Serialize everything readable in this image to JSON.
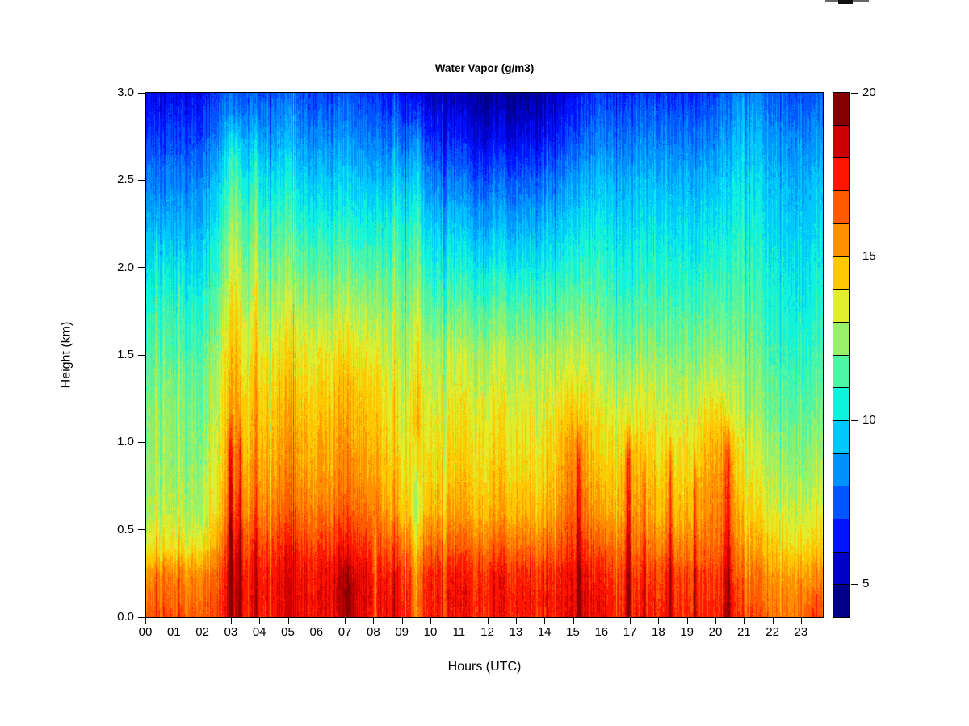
{
  "chart_data": {
    "type": "heatmap",
    "title": "Water Vapor (g/m3)",
    "xlabel": "Hours (UTC)",
    "ylabel": "Height (km)",
    "x_tick_labels": [
      "00",
      "01",
      "02",
      "03",
      "04",
      "05",
      "06",
      "07",
      "08",
      "09",
      "10",
      "11",
      "12",
      "13",
      "14",
      "15",
      "16",
      "17",
      "18",
      "19",
      "20",
      "21",
      "22",
      "23"
    ],
    "y_tick_labels_top_to_bottom": [
      "3.0",
      "2.5",
      "2.0",
      "1.5",
      "1.0",
      "0.5",
      "0.0"
    ],
    "x_range_hours": [
      0,
      23.77
    ],
    "y_range_km": [
      0,
      3
    ],
    "grid_on": false,
    "legend_position": "right-colorbar",
    "colorbar": {
      "min": 4,
      "max": 20,
      "step": 1,
      "tick_values": [
        20,
        15,
        10,
        5
      ],
      "tick_labels": [
        "20",
        "15",
        "10",
        "5"
      ],
      "colors_low_to_high": [
        "#00008b",
        "#0000c8",
        "#0013ff",
        "#0055ff",
        "#0091ff",
        "#00c8ff",
        "#0ff2dd",
        "#4ef5a5",
        "#97f16a",
        "#dfee2f",
        "#ffc800",
        "#ff9000",
        "#ff5a00",
        "#ff1500",
        "#cb0000",
        "#850000"
      ]
    },
    "grid": {
      "hours": [
        0,
        1,
        2,
        3,
        4,
        5,
        6,
        7,
        8,
        9,
        10,
        11,
        12,
        13,
        14,
        15,
        16,
        17,
        18,
        19,
        20,
        21,
        22,
        23,
        24
      ],
      "heights_km": [
        0.0,
        0.1,
        0.25,
        0.4,
        0.6,
        0.8,
        1.0,
        1.25,
        1.5,
        1.75,
        2.0,
        2.25,
        2.5,
        2.75,
        3.0
      ],
      "values_g_m3": [
        [
          16.6,
          16.6,
          16.6,
          17.4,
          17.6,
          17.7,
          17.8,
          17.8,
          17.7,
          17.6,
          17.8,
          17.8,
          17.8,
          17.8,
          17.8,
          17.9,
          17.6,
          17.5,
          17.4,
          17.4,
          17.5,
          16.6,
          16.5,
          16.6,
          16.8
        ],
        [
          16.2,
          16.2,
          16.2,
          17.4,
          17.7,
          17.8,
          17.9,
          18.0,
          17.8,
          17.6,
          17.9,
          17.9,
          17.9,
          17.9,
          17.8,
          17.9,
          17.5,
          17.4,
          17.3,
          17.3,
          17.4,
          16.4,
          16.2,
          16.4,
          16.6
        ],
        [
          15.6,
          15.6,
          15.6,
          17.2,
          17.5,
          17.6,
          17.7,
          17.9,
          17.6,
          17.3,
          17.6,
          17.7,
          17.7,
          17.6,
          17.5,
          17.7,
          17.2,
          17.1,
          16.9,
          16.9,
          17.1,
          15.9,
          15.7,
          15.8,
          16.0
        ],
        [
          13.8,
          13.8,
          14.0,
          16.6,
          16.9,
          17.0,
          17.0,
          17.2,
          16.8,
          16.3,
          16.6,
          16.6,
          16.6,
          16.5,
          16.4,
          17.0,
          16.2,
          16.4,
          15.9,
          15.9,
          16.5,
          15.1,
          14.8,
          14.7,
          14.8
        ],
        [
          12.8,
          12.8,
          12.9,
          15.6,
          15.9,
          16.0,
          16.0,
          16.1,
          15.7,
          14.8,
          15.2,
          15.3,
          15.3,
          15.2,
          15.1,
          16.3,
          14.9,
          15.6,
          14.9,
          14.9,
          16.0,
          14.2,
          13.9,
          13.8,
          13.9
        ],
        [
          12.6,
          12.5,
          12.6,
          15.0,
          15.2,
          15.3,
          15.3,
          15.4,
          15.0,
          14.2,
          14.6,
          14.7,
          14.7,
          14.6,
          14.5,
          15.9,
          14.3,
          15.2,
          14.4,
          14.4,
          15.7,
          13.6,
          13.3,
          13.2,
          13.3
        ],
        [
          12.4,
          12.3,
          12.4,
          14.6,
          14.8,
          14.9,
          14.9,
          15.0,
          14.6,
          13.8,
          14.2,
          14.3,
          14.3,
          14.2,
          14.1,
          15.3,
          13.8,
          14.6,
          13.9,
          13.9,
          15.1,
          13.1,
          12.8,
          12.7,
          12.8
        ],
        [
          12.1,
          12.0,
          12.1,
          14.2,
          14.3,
          14.4,
          14.4,
          14.4,
          14.1,
          13.4,
          13.7,
          13.8,
          13.8,
          13.7,
          13.6,
          14.1,
          13.2,
          13.6,
          13.2,
          13.2,
          13.9,
          12.4,
          12.2,
          12.1,
          12.2
        ],
        [
          11.6,
          11.5,
          11.6,
          13.7,
          13.7,
          13.7,
          13.7,
          13.7,
          13.4,
          12.9,
          13.1,
          13.2,
          13.2,
          13.1,
          13.0,
          13.1,
          12.5,
          12.6,
          12.4,
          12.4,
          12.7,
          11.9,
          11.7,
          11.6,
          11.7
        ],
        [
          11.0,
          10.9,
          11.0,
          13.1,
          12.9,
          12.8,
          12.7,
          12.6,
          12.4,
          12.3,
          12.1,
          12.0,
          12.0,
          11.9,
          11.9,
          12.0,
          11.7,
          11.7,
          11.6,
          11.6,
          11.8,
          11.4,
          11.2,
          11.1,
          11.2
        ],
        [
          10.1,
          10.0,
          10.1,
          12.4,
          12.1,
          11.9,
          11.7,
          11.5,
          11.3,
          11.7,
          11.0,
          10.8,
          10.7,
          10.6,
          10.7,
          10.9,
          10.9,
          10.9,
          10.8,
          10.8,
          11.0,
          10.9,
          10.8,
          10.7,
          10.8
        ],
        [
          9.2,
          9.1,
          9.2,
          11.6,
          11.2,
          10.9,
          10.7,
          10.4,
          10.2,
          10.8,
          9.9,
          9.6,
          9.4,
          9.3,
          9.5,
          9.8,
          10.1,
          10.2,
          10.1,
          10.1,
          10.3,
          10.4,
          10.3,
          10.2,
          10.3
        ],
        [
          8.4,
          8.3,
          8.4,
          10.6,
          10.2,
          9.9,
          9.6,
          9.3,
          9.0,
          9.6,
          8.6,
          8.2,
          8.0,
          7.9,
          8.2,
          8.6,
          9.2,
          9.4,
          9.3,
          9.3,
          9.5,
          9.9,
          9.8,
          9.7,
          9.8
        ],
        [
          7.3,
          7.2,
          7.3,
          9.2,
          8.9,
          8.6,
          8.4,
          8.1,
          7.8,
          8.0,
          7.1,
          6.6,
          6.3,
          6.2,
          6.6,
          7.2,
          8.0,
          8.3,
          8.2,
          8.2,
          8.4,
          9.1,
          9.0,
          8.9,
          9.0
        ],
        [
          6.3,
          6.2,
          6.3,
          7.8,
          7.6,
          7.4,
          7.2,
          7.0,
          6.7,
          6.5,
          5.8,
          5.3,
          5.0,
          4.9,
          5.4,
          6.1,
          6.9,
          7.2,
          7.1,
          7.1,
          7.3,
          8.2,
          8.1,
          8.0,
          8.1
        ]
      ]
    },
    "features": {
      "plumes_and_dips": [
        {
          "hour": 0.35,
          "w": 0.03,
          "amp": 1.6,
          "top": 2.4,
          "bot": 0
        },
        {
          "hour": 0.62,
          "w": 0.03,
          "amp": 1.5,
          "top": 2.4,
          "bot": 0
        },
        {
          "hour": 1.15,
          "w": 0.02,
          "amp": 1.3,
          "top": 2.2,
          "bot": 0
        },
        {
          "hour": 2.95,
          "w": 0.06,
          "amp": 2.3,
          "top": 1.2,
          "bot": 0
        },
        {
          "hour": 3.1,
          "w": 0.2,
          "amp": 1.2,
          "top": 2.9,
          "bot": 0
        },
        {
          "hour": 3.3,
          "w": 0.05,
          "amp": 2.0,
          "top": 1.2,
          "bot": 0
        },
        {
          "hour": 3.85,
          "w": 0.08,
          "amp": 1.1,
          "top": 2.9,
          "bot": 0
        },
        {
          "hour": 7.05,
          "w": 0.18,
          "amp": 0.9,
          "top": 0.4,
          "bot": 0
        },
        {
          "hour": 8.05,
          "w": 0.05,
          "amp": -2.0,
          "top": 0.6,
          "bot": 0
        },
        {
          "hour": 9.5,
          "w": 0.13,
          "amp": -2.0,
          "top": 0.9,
          "bot": 0
        },
        {
          "hour": 9.5,
          "w": 0.13,
          "amp": 1.2,
          "top": 3.0,
          "bot": 0.95
        },
        {
          "hour": 10.45,
          "w": 0.05,
          "amp": -1.2,
          "top": 3.0,
          "bot": 0
        },
        {
          "hour": 11.55,
          "w": 0.04,
          "amp": -1.2,
          "top": 3.0,
          "bot": 0
        },
        {
          "hour": 15.2,
          "w": 0.05,
          "amp": 2.2,
          "top": 1.15,
          "bot": 0
        },
        {
          "hour": 16.95,
          "w": 0.08,
          "amp": 2.5,
          "top": 1.15,
          "bot": 0
        },
        {
          "hour": 17.5,
          "w": 0.03,
          "amp": 1.9,
          "top": 1.0,
          "bot": 0
        },
        {
          "hour": 18.42,
          "w": 0.06,
          "amp": 2.3,
          "top": 1.1,
          "bot": 0
        },
        {
          "hour": 19.3,
          "w": 0.04,
          "amp": 2.1,
          "top": 1.0,
          "bot": 0
        },
        {
          "hour": 20.45,
          "w": 0.09,
          "amp": 2.7,
          "top": 1.18,
          "bot": 0
        },
        {
          "hour": 23.45,
          "w": 0.25,
          "amp": 1.2,
          "top": 0.18,
          "bot": 0
        }
      ]
    }
  }
}
